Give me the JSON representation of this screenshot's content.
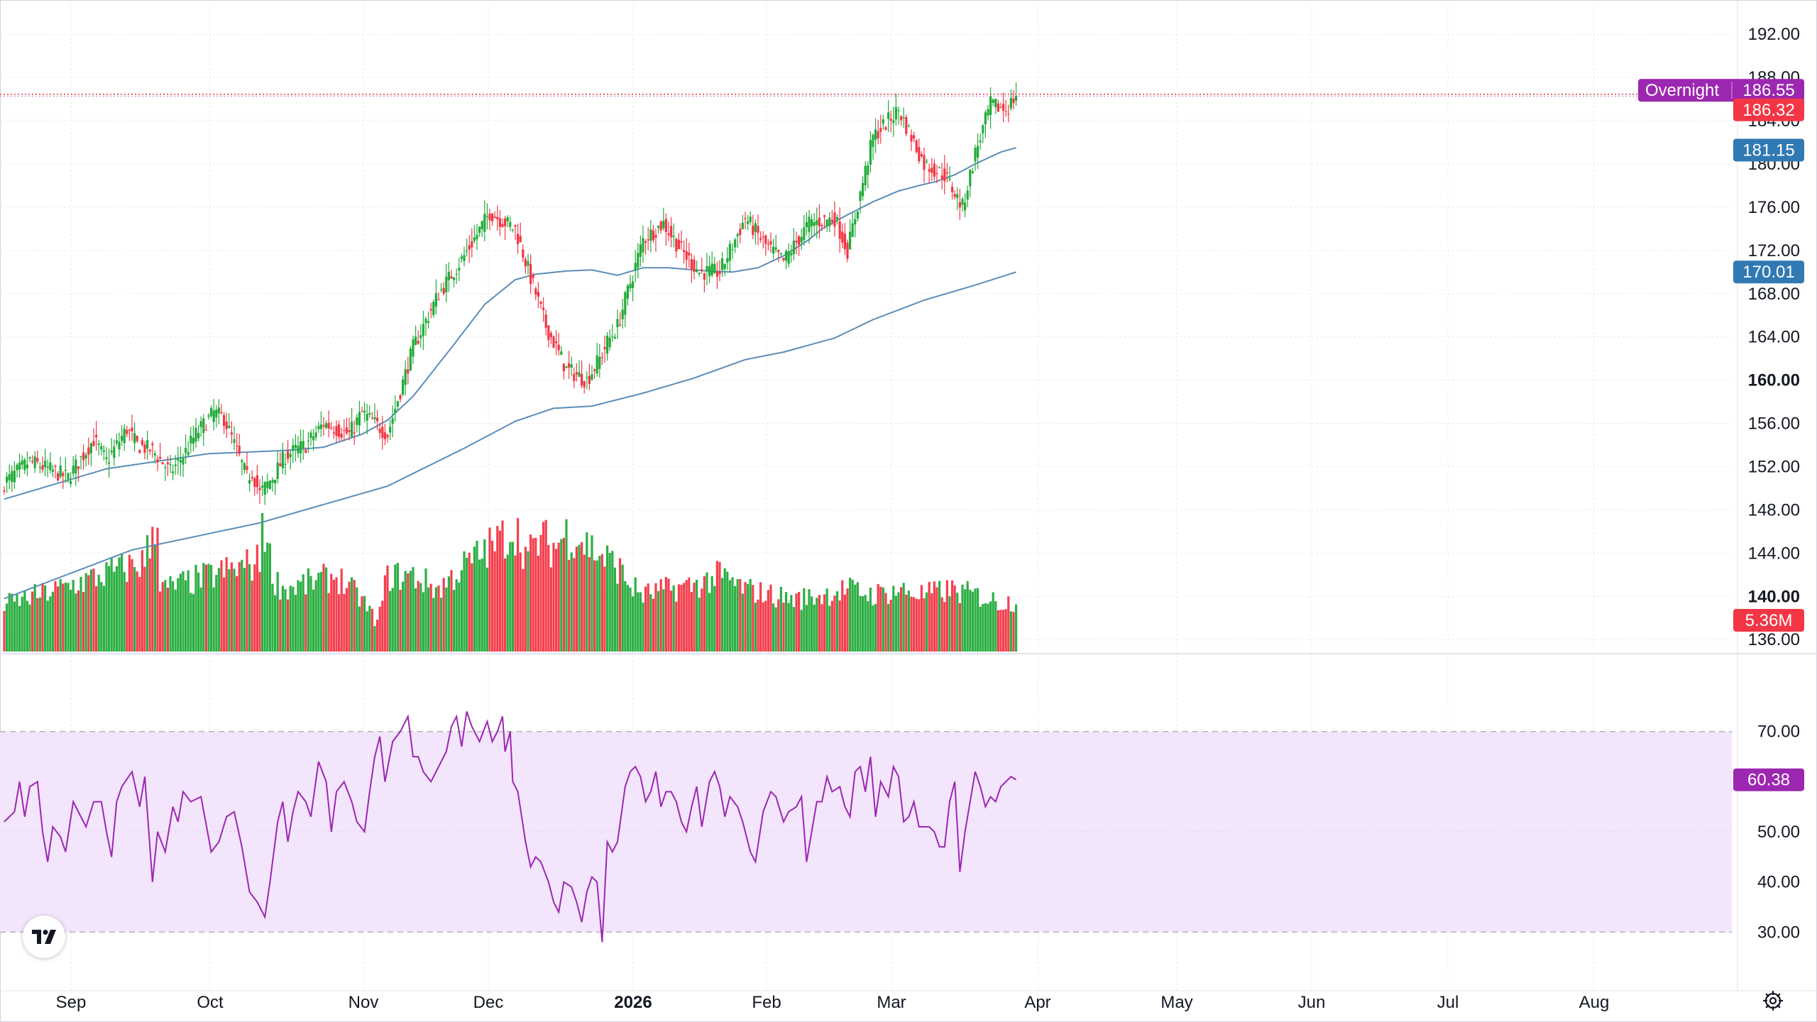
{
  "colors": {
    "up": "#22ab3a",
    "down": "#f23645",
    "ma": "#5b8db8",
    "rsi_line": "#9c27b0",
    "rsi_band": "#f3e5fc",
    "overnight": "#9c27b0",
    "last_price": "#f23645",
    "ma50_badge": "#3179b3",
    "ma200_badge": "#3179b3"
  },
  "labels": {
    "overnight_text": "Overnight",
    "overnight_value": "186.55",
    "last_price": "186.32",
    "ma50_value": "181.15",
    "ma200_value": "170.01",
    "volume_value": "5.36M",
    "rsi_value": "60.38"
  },
  "icons": {
    "logo": "tradingview-logo-icon",
    "settings": "gear-icon"
  },
  "chart_data": [
    {
      "type": "candlestick",
      "title": "",
      "price_axis": {
        "ticks": [
          "192.00",
          "188.00",
          "184.00",
          "180.00",
          "176.00",
          "172.00",
          "168.00",
          "164.00",
          "160.00",
          "156.00",
          "152.00",
          "148.00",
          "144.00",
          "140.00",
          "136.00"
        ],
        "bold_ticks": [
          "160.00",
          "140.00"
        ],
        "range": [
          134.9,
          193.0
        ]
      },
      "time_axis": {
        "labels": [
          "Sep",
          "Oct",
          "Nov",
          "Dec",
          "2026",
          "Feb",
          "Mar",
          "Apr",
          "May",
          "Jun",
          "Jul",
          "Aug"
        ],
        "bold_labels": [
          "2026"
        ]
      },
      "series": [
        {
          "name": "",
          "kind": "candles",
          "close_anchors": [
            [
              0,
              150.5
            ],
            [
              10,
              152.5
            ],
            [
              25,
              151
            ],
            [
              35,
              154.5
            ],
            [
              40,
              152.5
            ],
            [
              48,
              155.5
            ],
            [
              52,
              154
            ],
            [
              58,
              153.5
            ],
            [
              65,
              151.5
            ],
            [
              70,
              153
            ],
            [
              75,
              155
            ],
            [
              82,
              157
            ],
            [
              86,
              156.5
            ],
            [
              95,
              151
            ],
            [
              97,
              151.5
            ],
            [
              100,
              149.5
            ],
            [
              105,
              151
            ],
            [
              110,
              153
            ],
            [
              118,
              154
            ],
            [
              125,
              156
            ],
            [
              135,
              155
            ],
            [
              140,
              157
            ],
            [
              150,
              155
            ],
            [
              160,
              163
            ],
            [
              170,
              168
            ],
            [
              180,
              171.5
            ],
            [
              190,
              175.5
            ],
            [
              200,
              174
            ],
            [
              212,
              165
            ],
            [
              220,
              161
            ],
            [
              228,
              160
            ],
            [
              233,
              162
            ],
            [
              236,
              163.5
            ],
            [
              240,
              165
            ],
            [
              250,
              173
            ],
            [
              258,
              174.5
            ],
            [
              265,
              172
            ],
            [
              272,
              170
            ],
            [
              280,
              170
            ],
            [
              290,
              175
            ],
            [
              298,
              172.5
            ],
            [
              305,
              171
            ],
            [
              315,
              174.5
            ],
            [
              325,
              175
            ],
            [
              330,
              172
            ],
            [
              340,
              182.5
            ],
            [
              350,
              185
            ],
            [
              352,
              184
            ],
            [
              360,
              180
            ],
            [
              368,
              179
            ],
            [
              375,
              176
            ],
            [
              380,
              181
            ],
            [
              386,
              185.5
            ],
            [
              392,
              185
            ],
            [
              396,
              186.3
            ]
          ]
        },
        {
          "name": "",
          "kind": "moving-average",
          "points": [
            [
              0,
              149
            ],
            [
              40,
              151.8
            ],
            [
              80,
              153.2
            ],
            [
              110,
              153.5
            ],
            [
              125,
              153.8
            ],
            [
              140,
              155
            ],
            [
              150,
              156.3
            ],
            [
              160,
              158.5
            ],
            [
              175,
              163
            ],
            [
              188,
              167
            ],
            [
              200,
              169.3
            ],
            [
              208,
              169.8
            ],
            [
              220,
              170.1
            ],
            [
              230,
              170.2
            ],
            [
              240,
              169.7
            ],
            [
              250,
              170.4
            ],
            [
              260,
              170.4
            ],
            [
              275,
              170.1
            ],
            [
              285,
              170
            ],
            [
              295,
              170.4
            ],
            [
              305,
              171.5
            ],
            [
              315,
              173
            ],
            [
              320,
              174
            ],
            [
              330,
              175.3
            ],
            [
              340,
              176.5
            ],
            [
              350,
              177.5
            ],
            [
              358,
              178
            ],
            [
              365,
              178.4
            ],
            [
              372,
              179
            ],
            [
              380,
              180
            ],
            [
              390,
              181.1
            ],
            [
              396,
              181.5
            ]
          ]
        },
        {
          "name": "",
          "kind": "moving-average",
          "points": [
            [
              0,
              139.8
            ],
            [
              50,
              144.3
            ],
            [
              100,
              146.8
            ],
            [
              150,
              150.2
            ],
            [
              180,
              153.7
            ],
            [
              200,
              156.2
            ],
            [
              215,
              157.4
            ],
            [
              230,
              157.6
            ],
            [
              250,
              158.8
            ],
            [
              270,
              160.2
            ],
            [
              290,
              161.9
            ],
            [
              305,
              162.6
            ],
            [
              325,
              163.9
            ],
            [
              340,
              165.6
            ],
            [
              360,
              167.4
            ],
            [
              380,
              168.8
            ],
            [
              396,
              170
            ]
          ]
        }
      ]
    },
    {
      "type": "bar",
      "title": "",
      "series": [
        {
          "name": "",
          "last_value": "5.36M"
        }
      ],
      "levels": [
        [
          0,
          5.0
        ],
        [
          20,
          6.5
        ],
        [
          55,
          9.5
        ],
        [
          60,
          15
        ],
        [
          61,
          6.5
        ],
        [
          100,
          9.5
        ],
        [
          101,
          15
        ],
        [
          103,
          11
        ],
        [
          106,
          7.5
        ],
        [
          110,
          6.6
        ],
        [
          130,
          8
        ],
        [
          140,
          5.5
        ],
        [
          146,
          3
        ],
        [
          150,
          8
        ],
        [
          160,
          8
        ],
        [
          170,
          6.6
        ],
        [
          180,
          9
        ],
        [
          190,
          11
        ],
        [
          200,
          13
        ],
        [
          205,
          10
        ],
        [
          210,
          12
        ],
        [
          215,
          11
        ],
        [
          220,
          12.5
        ],
        [
          225,
          12
        ],
        [
          232,
          10.5
        ],
        [
          240,
          9
        ],
        [
          245,
          7
        ],
        [
          250,
          6
        ],
        [
          260,
          6.6
        ],
        [
          270,
          7
        ],
        [
          280,
          8
        ],
        [
          290,
          6.6
        ],
        [
          300,
          6
        ],
        [
          310,
          5.5
        ],
        [
          320,
          6
        ],
        [
          330,
          6.6
        ],
        [
          340,
          6
        ],
        [
          350,
          6.5
        ],
        [
          360,
          6
        ],
        [
          370,
          6.5
        ],
        [
          380,
          6
        ],
        [
          390,
          5.2
        ],
        [
          396,
          5.36
        ]
      ]
    },
    {
      "type": "line",
      "title": "",
      "axis": {
        "ticks": [
          "70.00",
          "50.00",
          "40.00",
          "30.00"
        ],
        "range": [
          27.5,
          73.5
        ],
        "band": [
          30,
          70
        ]
      },
      "series": [
        {
          "name": "",
          "last_value": "60.38"
        }
      ],
      "anchors": [
        [
          0,
          52
        ],
        [
          4,
          54
        ],
        [
          6,
          60
        ],
        [
          8,
          53
        ],
        [
          10,
          59
        ],
        [
          13,
          60
        ],
        [
          15,
          50
        ],
        [
          17,
          44
        ],
        [
          19,
          51
        ],
        [
          22,
          49
        ],
        [
          24,
          46
        ],
        [
          27,
          56
        ],
        [
          29,
          54
        ],
        [
          32,
          51
        ],
        [
          35,
          56
        ],
        [
          38,
          56
        ],
        [
          40,
          50
        ],
        [
          42,
          45
        ],
        [
          44,
          56
        ],
        [
          46,
          59
        ],
        [
          50,
          62
        ],
        [
          53,
          55
        ],
        [
          55,
          61
        ],
        [
          58,
          40
        ],
        [
          60,
          50
        ],
        [
          63,
          46
        ],
        [
          66,
          55
        ],
        [
          68,
          52
        ],
        [
          70,
          58
        ],
        [
          73,
          56
        ],
        [
          77,
          57
        ],
        [
          81,
          46
        ],
        [
          84,
          48
        ],
        [
          87,
          53
        ],
        [
          90,
          54
        ],
        [
          93,
          47
        ],
        [
          96,
          38
        ],
        [
          99,
          36
        ],
        [
          102,
          33
        ],
        [
          104,
          40
        ],
        [
          107,
          52
        ],
        [
          109,
          56
        ],
        [
          111,
          48
        ],
        [
          113,
          54
        ],
        [
          115,
          58
        ],
        [
          118,
          56
        ],
        [
          120,
          53
        ],
        [
          123,
          64
        ],
        [
          126,
          60
        ],
        [
          128,
          50
        ],
        [
          130,
          58
        ],
        [
          133,
          60
        ],
        [
          136,
          56
        ],
        [
          138,
          52
        ],
        [
          141,
          50
        ],
        [
          143,
          58
        ],
        [
          145,
          65
        ],
        [
          147,
          69
        ],
        [
          149,
          60
        ],
        [
          152,
          68
        ],
        [
          155,
          70
        ],
        [
          158,
          73
        ],
        [
          160,
          65
        ],
        [
          162,
          65
        ],
        [
          164,
          62
        ],
        [
          167,
          60
        ],
        [
          170,
          63
        ],
        [
          173,
          66
        ],
        [
          175,
          71
        ],
        [
          177,
          73
        ],
        [
          179,
          67
        ],
        [
          181,
          74
        ],
        [
          183,
          71
        ],
        [
          186,
          68
        ],
        [
          189,
          72
        ],
        [
          191,
          68
        ],
        [
          193,
          70
        ],
        [
          195,
          73
        ],
        [
          196,
          66
        ],
        [
          198,
          70
        ],
        [
          199,
          60
        ],
        [
          201,
          58
        ],
        [
          204,
          48
        ],
        [
          206,
          43
        ],
        [
          208,
          45
        ],
        [
          210,
          44
        ],
        [
          213,
          40
        ],
        [
          215,
          36
        ],
        [
          217,
          34
        ],
        [
          219,
          40
        ],
        [
          222,
          39
        ],
        [
          224,
          36
        ],
        [
          226,
          32
        ],
        [
          228,
          38
        ],
        [
          230,
          41
        ],
        [
          232,
          40
        ],
        [
          234,
          28
        ],
        [
          236,
          48
        ],
        [
          238,
          46
        ],
        [
          240,
          48
        ],
        [
          243,
          59
        ],
        [
          245,
          62
        ],
        [
          247,
          63
        ],
        [
          249,
          61
        ],
        [
          251,
          56
        ],
        [
          253,
          58
        ],
        [
          255,
          62
        ],
        [
          257,
          55
        ],
        [
          259,
          58
        ],
        [
          261,
          58
        ],
        [
          263,
          56
        ],
        [
          265,
          52
        ],
        [
          267,
          50
        ],
        [
          269,
          55
        ],
        [
          271,
          59
        ],
        [
          273,
          51
        ],
        [
          276,
          60
        ],
        [
          278,
          62
        ],
        [
          280,
          59
        ],
        [
          282,
          53
        ],
        [
          284,
          57
        ],
        [
          287,
          55
        ],
        [
          289,
          52
        ],
        [
          292,
          46
        ],
        [
          294,
          44
        ],
        [
          297,
          54
        ],
        [
          300,
          58
        ],
        [
          302,
          57
        ],
        [
          305,
          52
        ],
        [
          307,
          54
        ],
        [
          310,
          55
        ],
        [
          312,
          57
        ],
        [
          314,
          44
        ],
        [
          316,
          50
        ],
        [
          318,
          56
        ],
        [
          320,
          56
        ],
        [
          322,
          61
        ],
        [
          324,
          58
        ],
        [
          327,
          59
        ],
        [
          329,
          55
        ],
        [
          331,
          53
        ],
        [
          333,
          62
        ],
        [
          335,
          63
        ],
        [
          337,
          58
        ],
        [
          339,
          65
        ],
        [
          341,
          53
        ],
        [
          343,
          60
        ],
        [
          346,
          57
        ],
        [
          348,
          63
        ],
        [
          350,
          61
        ],
        [
          352,
          52
        ],
        [
          354,
          53
        ],
        [
          356,
          56
        ],
        [
          358,
          51
        ],
        [
          360,
          51
        ],
        [
          362,
          51
        ],
        [
          364,
          50
        ],
        [
          366,
          47
        ],
        [
          368,
          47
        ],
        [
          370,
          56
        ],
        [
          372,
          60
        ],
        [
          374,
          42
        ],
        [
          376,
          50
        ],
        [
          378,
          56
        ],
        [
          380,
          62
        ],
        [
          382,
          59
        ],
        [
          384,
          55
        ],
        [
          386,
          57
        ],
        [
          388,
          56
        ],
        [
          390,
          59
        ],
        [
          392,
          60
        ],
        [
          394,
          61
        ],
        [
          396,
          60.38
        ]
      ]
    }
  ]
}
